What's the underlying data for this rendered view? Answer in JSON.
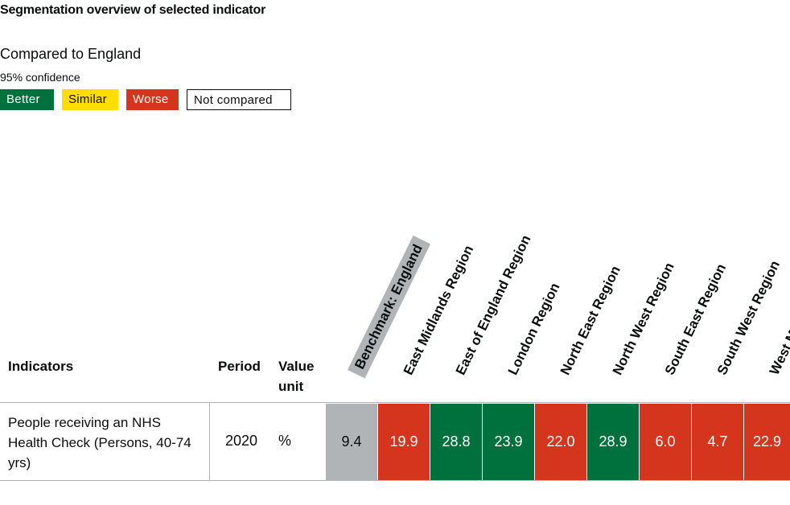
{
  "title": "Segmentation overview of selected indicator",
  "compared_to": "Compared to England",
  "confidence": "95% confidence",
  "legend": {
    "better": "Better",
    "similar": "Similar",
    "worse": "Worse",
    "not_compared": "Not compared"
  },
  "colors": {
    "better": "#00703c",
    "similar": "#ffdd00",
    "worse": "#d4351c",
    "benchmark": "#b1b4b6"
  },
  "table": {
    "headers": {
      "indicators": "Indicators",
      "period": "Period",
      "value_unit": "Value unit"
    },
    "columns": [
      "Benchmark: England",
      "East Midlands Region",
      "East of England Region",
      "London Region",
      "North East Region",
      "North West Region",
      "South East Region",
      "South West Region",
      "West Midlands Region"
    ],
    "row": {
      "indicator": "People receiving an NHS Health Check (Persons, 40-74 yrs)",
      "period": "2020",
      "unit": "%",
      "values": [
        "9.4",
        "19.9",
        "28.8",
        "23.9",
        "22.0",
        "28.9",
        "6.0",
        "4.7",
        "22.9"
      ],
      "statuses": [
        "benchmark",
        "worse",
        "better",
        "better",
        "worse",
        "better",
        "worse",
        "worse",
        "worse"
      ]
    }
  }
}
